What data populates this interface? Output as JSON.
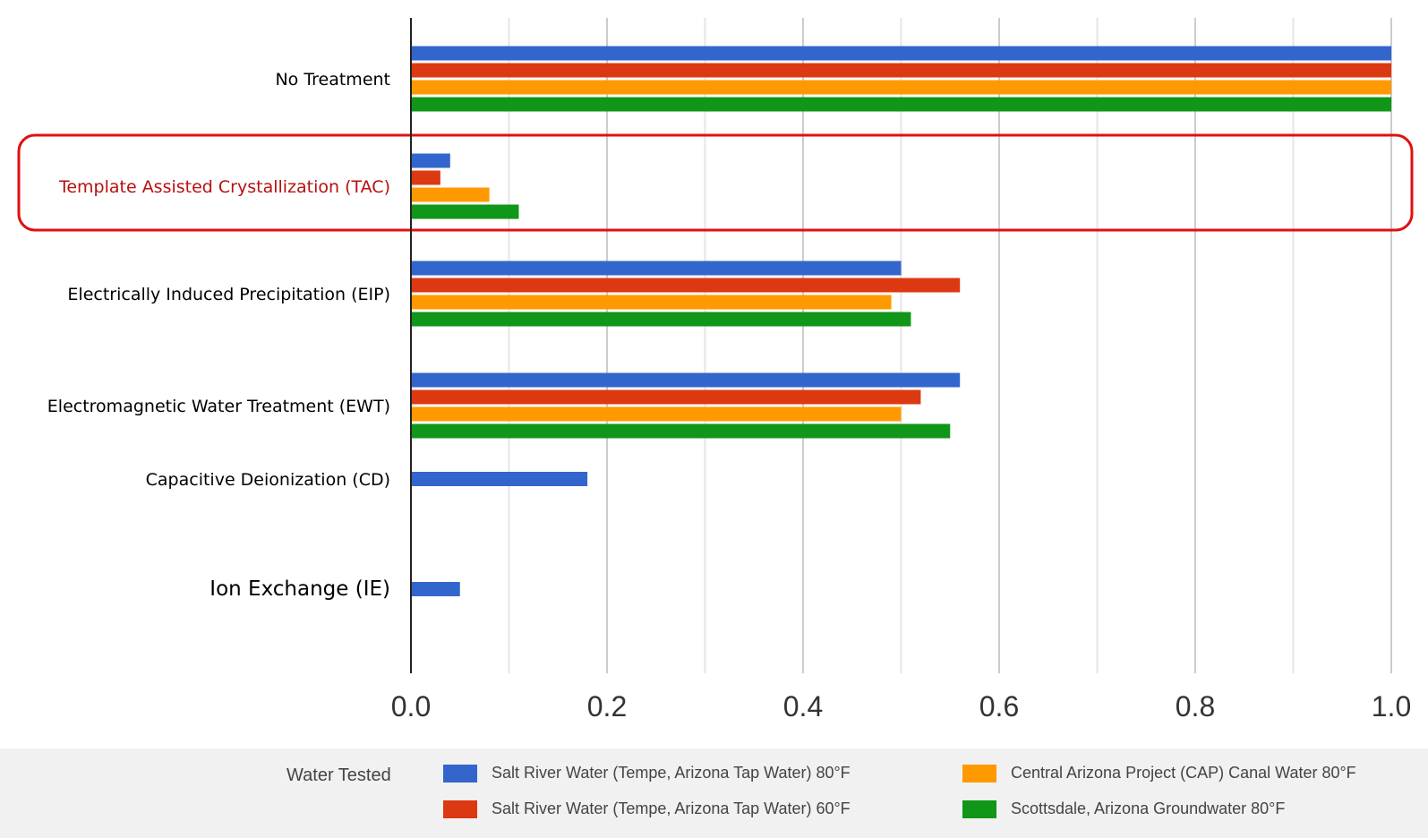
{
  "chart_data": {
    "type": "bar",
    "orientation": "horizontal",
    "title": "",
    "xlabel": "",
    "ylabel": "",
    "xlim": [
      0,
      1.0
    ],
    "xticks": [
      "0.0",
      "0.2",
      "0.4",
      "0.6",
      "0.8",
      "1.0"
    ],
    "grid": true,
    "categories": [
      "No Treatment",
      "Template Assisted Crystallization (TAC)",
      "Electrically Induced Precipitation (EIP)",
      "Electromagnetic Water Treatment (EWT)",
      "Capacitive Deionization (CD)",
      "Ion Exchange (IE)"
    ],
    "highlighted_category": "Template Assisted Crystallization (TAC)",
    "highlight_color": "#e01010",
    "highlight_text_color": "#b80f0f",
    "series": [
      {
        "name": "Salt River Water (Tempe, Arizona Tap Water) 80°F",
        "color": "#3366cc",
        "values": [
          1.0,
          0.04,
          0.5,
          0.56,
          0.18,
          0.05
        ]
      },
      {
        "name": "Salt River Water (Tempe, Arizona Tap Water) 60°F",
        "color": "#dc3912",
        "values": [
          1.0,
          0.03,
          0.56,
          0.52,
          null,
          null
        ]
      },
      {
        "name": "Central Arizona Project (CAP) Canal Water 80°F",
        "color": "#ff9900",
        "values": [
          1.0,
          0.08,
          0.49,
          0.5,
          null,
          null
        ]
      },
      {
        "name": "Scottsdale, Arizona Groundwater 80°F",
        "color": "#109618",
        "values": [
          1.0,
          0.11,
          0.51,
          0.55,
          null,
          null
        ]
      }
    ],
    "legend": {
      "title": "Water Tested",
      "position": "bottom"
    }
  }
}
